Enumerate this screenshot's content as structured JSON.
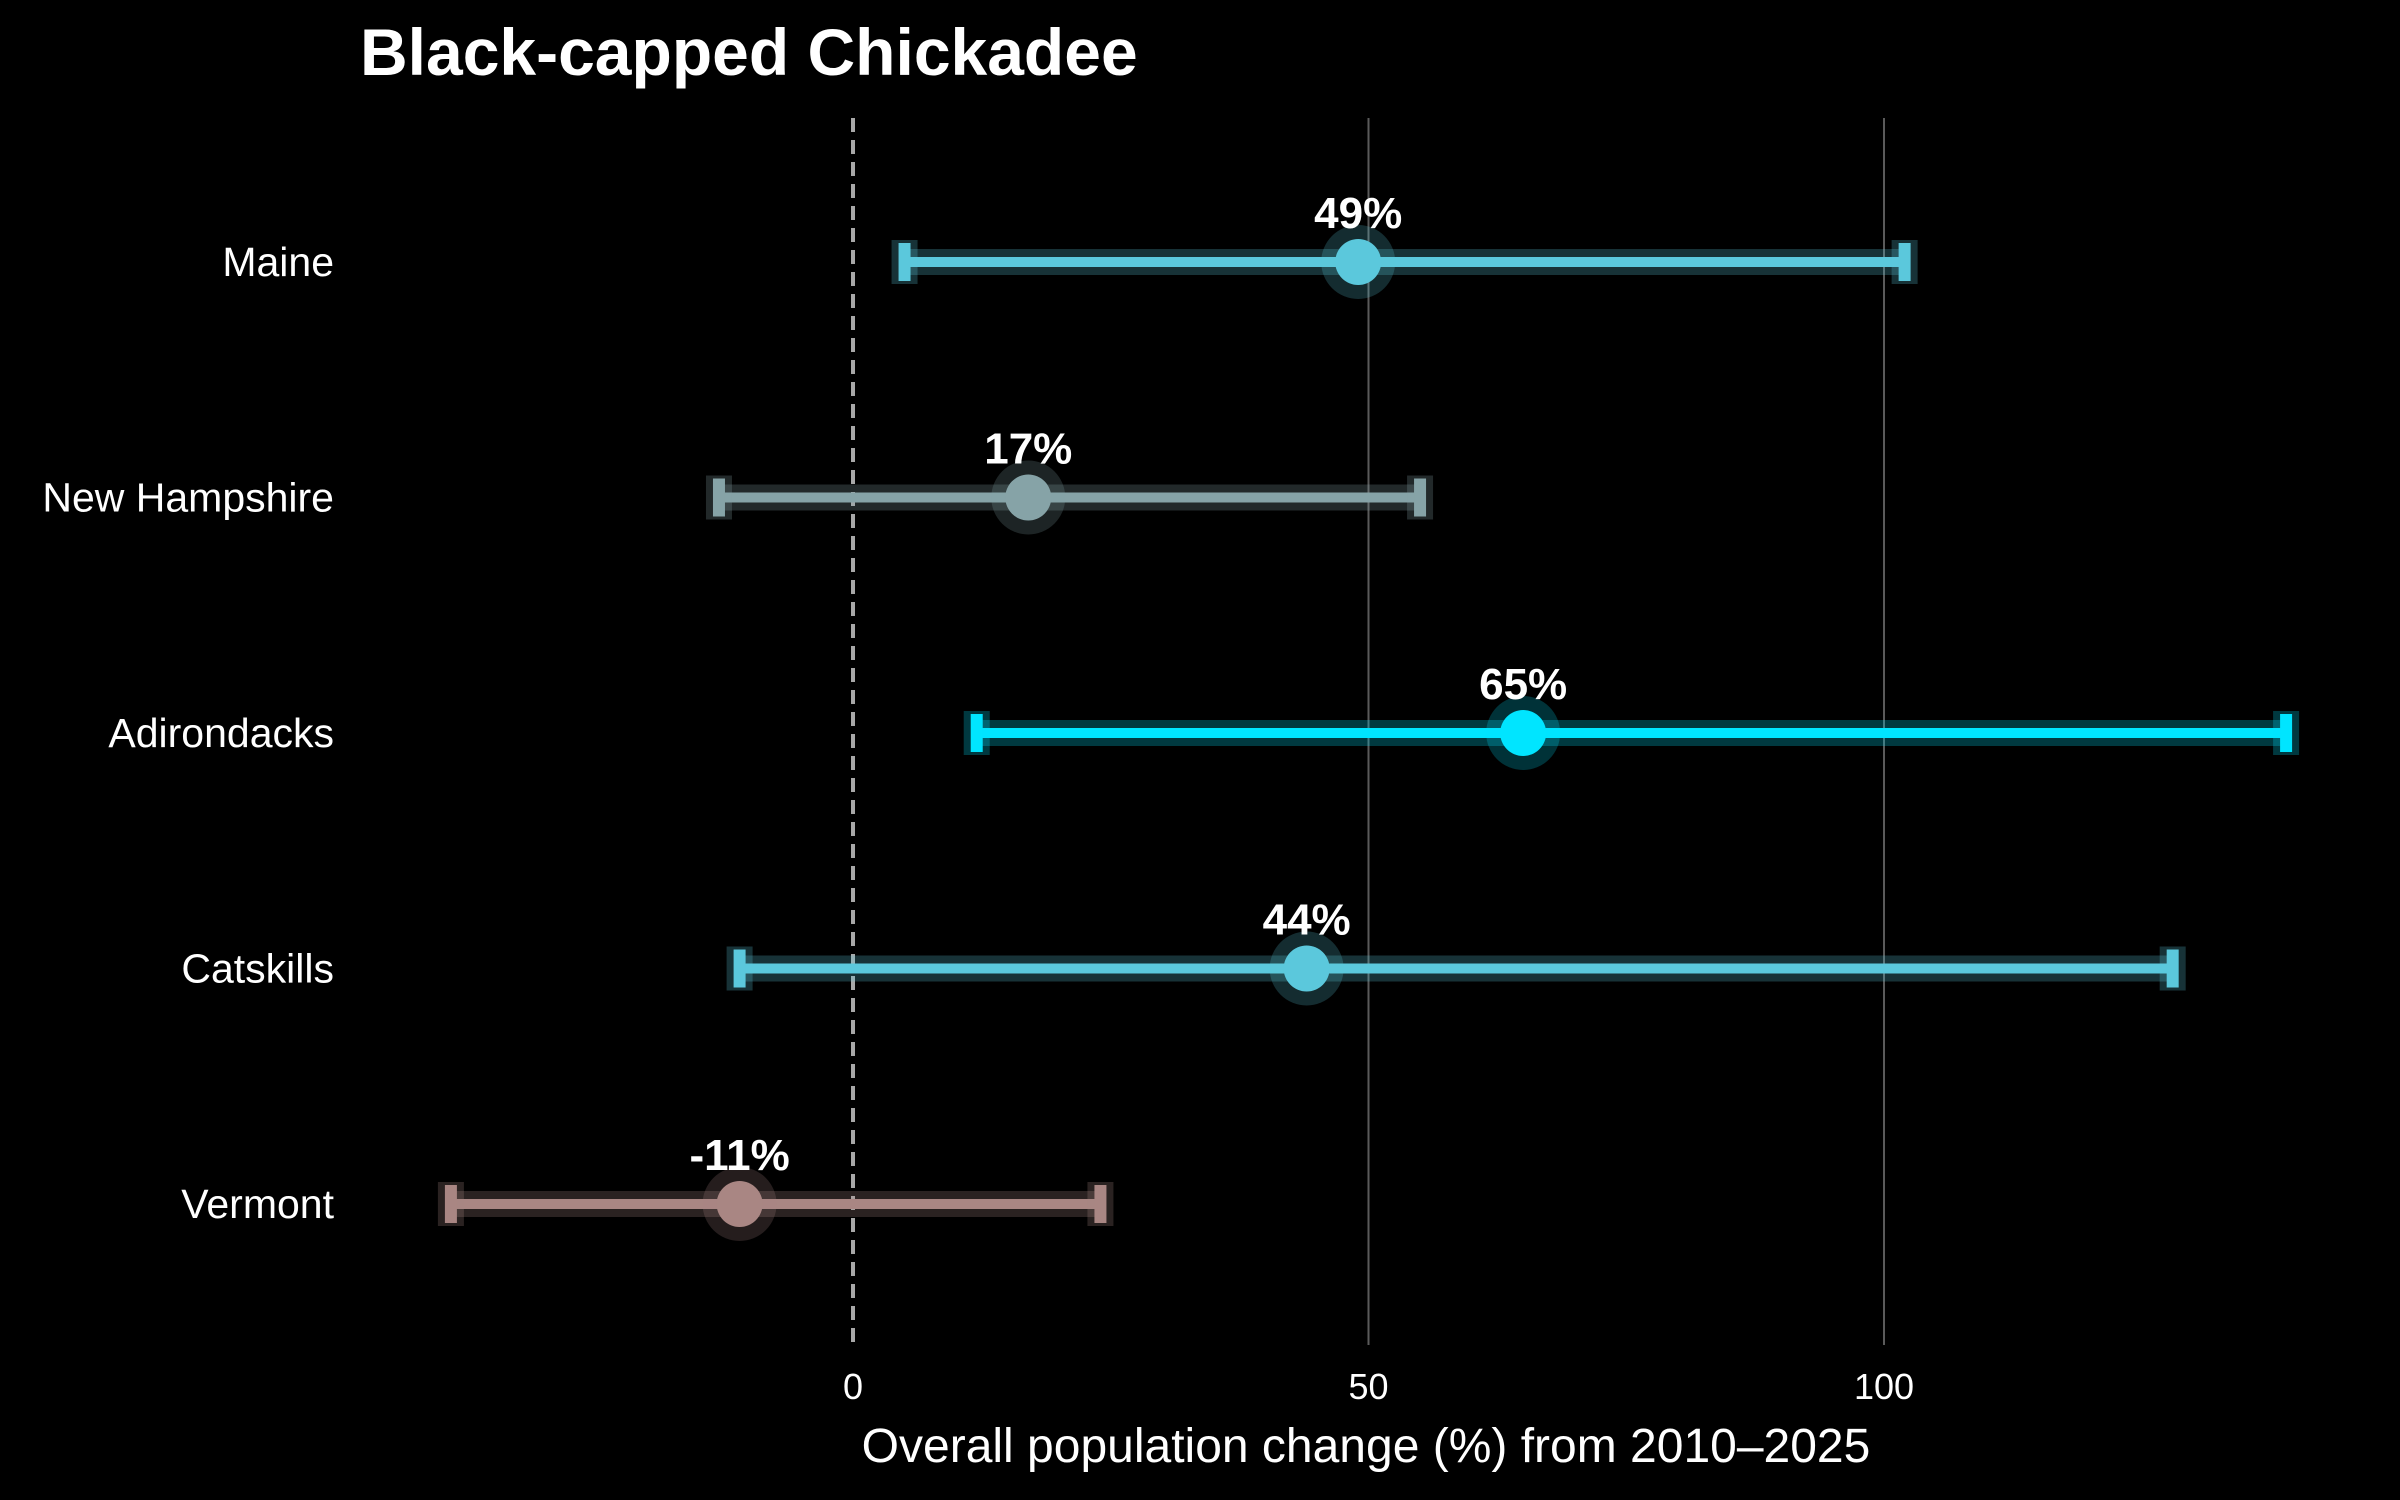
{
  "chart_data": {
    "type": "dot-interval",
    "title": "Black-capped Chickadee",
    "xlabel": "Overall population change (%) from 2010–2025",
    "ylabel": "",
    "xlim": [
      -40,
      140
    ],
    "xticks": [
      0,
      50,
      100
    ],
    "xtick_labels": [
      "0",
      "50",
      "100"
    ],
    "grid": "vertical",
    "reference_line": 0,
    "categories": [
      "Maine",
      "New Hampshire",
      "Adirondacks",
      "Catskills",
      "Vermont"
    ],
    "values": [
      49,
      17,
      65,
      44,
      -11
    ],
    "value_labels": [
      "49%",
      "17%",
      "65%",
      "44%",
      "-11%"
    ],
    "lower": [
      5,
      -13,
      12,
      -11,
      -39
    ],
    "upper": [
      102,
      55,
      139,
      128,
      24
    ],
    "colors": [
      "#5bc8dc",
      "#86a3a7",
      "#00e5ff",
      "#5bc8dc",
      "#a98683"
    ]
  }
}
